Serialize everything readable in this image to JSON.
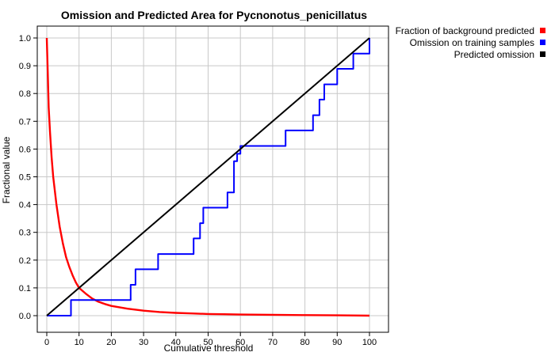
{
  "chart_data": {
    "type": "line",
    "title": "Omission and Predicted Area for Pycnonotus_penicillatus",
    "xlabel": "Cumulative threshold",
    "ylabel": "Fractional value",
    "xlim": [
      0,
      100
    ],
    "ylim": [
      0,
      1
    ],
    "grid": true,
    "legend_position": "right-outside-top",
    "x_ticks": [
      0,
      10,
      20,
      30,
      40,
      50,
      60,
      70,
      80,
      90,
      100
    ],
    "y_ticks": [
      0.0,
      0.1,
      0.2,
      0.3,
      0.4,
      0.5,
      0.6,
      0.7,
      0.8,
      0.9,
      1.0
    ],
    "series": [
      {
        "name": "Fraction of background predicted",
        "color": "#ff0000",
        "style": "line",
        "points": [
          [
            0,
            1.0
          ],
          [
            0.3,
            0.88
          ],
          [
            0.6,
            0.75
          ],
          [
            1,
            0.66
          ],
          [
            1.5,
            0.57
          ],
          [
            2,
            0.5
          ],
          [
            3,
            0.4
          ],
          [
            4,
            0.32
          ],
          [
            5,
            0.26
          ],
          [
            6,
            0.21
          ],
          [
            7,
            0.175
          ],
          [
            8,
            0.145
          ],
          [
            9,
            0.12
          ],
          [
            10,
            0.1
          ],
          [
            12,
            0.08
          ],
          [
            14,
            0.062
          ],
          [
            16,
            0.05
          ],
          [
            18,
            0.042
          ],
          [
            20,
            0.035
          ],
          [
            25,
            0.025
          ],
          [
            30,
            0.018
          ],
          [
            35,
            0.013
          ],
          [
            40,
            0.01
          ],
          [
            45,
            0.008
          ],
          [
            50,
            0.006
          ],
          [
            55,
            0.005
          ],
          [
            60,
            0.004
          ],
          [
            70,
            0.003
          ],
          [
            80,
            0.002
          ],
          [
            90,
            0.001
          ],
          [
            100,
            0.0
          ]
        ]
      },
      {
        "name": "Omission on training samples",
        "color": "#0000ff",
        "style": "step",
        "points": [
          [
            0,
            0.0
          ],
          [
            7.5,
            0.0
          ],
          [
            7.5,
            0.056
          ],
          [
            26,
            0.056
          ],
          [
            26,
            0.111
          ],
          [
            27.5,
            0.111
          ],
          [
            27.5,
            0.167
          ],
          [
            34.5,
            0.167
          ],
          [
            34.5,
            0.222
          ],
          [
            45.5,
            0.222
          ],
          [
            45.5,
            0.278
          ],
          [
            47.5,
            0.278
          ],
          [
            47.5,
            0.333
          ],
          [
            48.5,
            0.333
          ],
          [
            48.5,
            0.389
          ],
          [
            56,
            0.389
          ],
          [
            56,
            0.444
          ],
          [
            58,
            0.444
          ],
          [
            58,
            0.556
          ],
          [
            59,
            0.556
          ],
          [
            59,
            0.583
          ],
          [
            60,
            0.583
          ],
          [
            60,
            0.611
          ],
          [
            74,
            0.611
          ],
          [
            74,
            0.667
          ],
          [
            82.5,
            0.667
          ],
          [
            82.5,
            0.722
          ],
          [
            84.5,
            0.722
          ],
          [
            84.5,
            0.778
          ],
          [
            86,
            0.778
          ],
          [
            86,
            0.833
          ],
          [
            90,
            0.833
          ],
          [
            90,
            0.889
          ],
          [
            95,
            0.889
          ],
          [
            95,
            0.944
          ],
          [
            100,
            0.944
          ],
          [
            100,
            1.0
          ]
        ]
      },
      {
        "name": "Predicted omission",
        "color": "#000000",
        "style": "line",
        "points": [
          [
            0,
            0.0
          ],
          [
            100,
            1.0
          ]
        ]
      }
    ]
  }
}
